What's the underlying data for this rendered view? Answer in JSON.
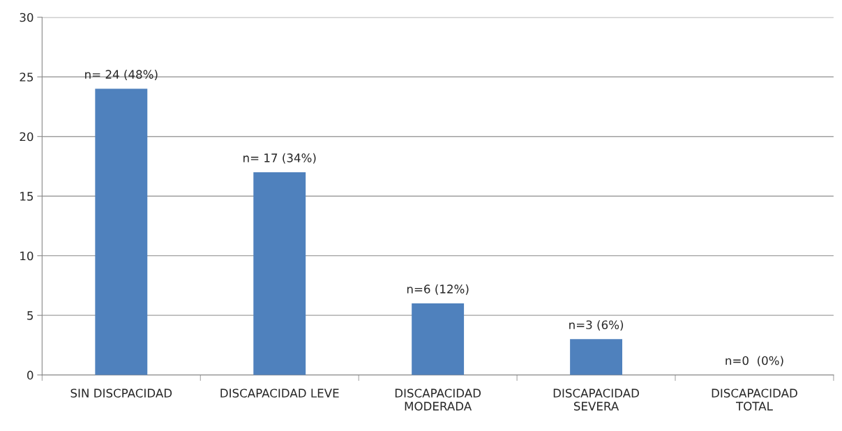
{
  "chart_data": {
    "type": "bar",
    "categories": [
      "SIN DISCPACIDAD",
      "DISCAPACIDAD LEVE",
      "DISCAPACIDAD\nMODERADA",
      "DISCAPACIDAD\nSEVERA",
      "DISCAPACIDAD\nTOTAL"
    ],
    "values": [
      24,
      17,
      6,
      3,
      0
    ],
    "value_labels": [
      "n= 24 (48%)",
      "n= 17 (34%)",
      "n=6 (12%)",
      "n=3 (6%)",
      "n=0  (0%)"
    ],
    "color": "#4f81bd",
    "ylim": [
      0,
      30
    ],
    "yticks": [
      0,
      5,
      10,
      15,
      20,
      25,
      30
    ],
    "grid": "y"
  }
}
